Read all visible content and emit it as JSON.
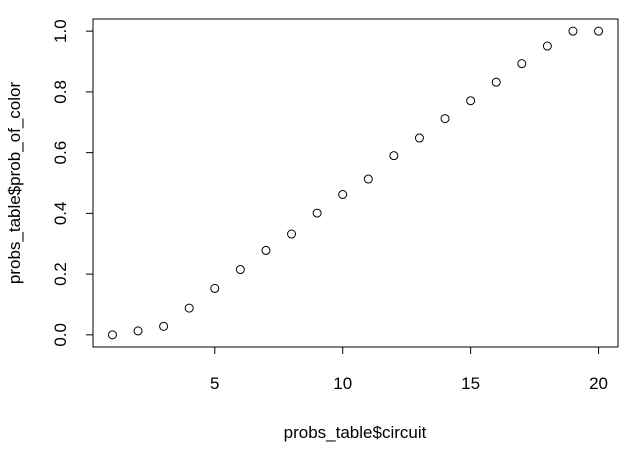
{
  "chart_data": {
    "type": "scatter",
    "title": "",
    "xlabel": "probs_table$circuit",
    "ylabel": "probs_table$prob_of_color",
    "xlim": [
      0.24,
      20.76
    ],
    "ylim": [
      -0.04,
      1.04
    ],
    "grid": false,
    "legend": "none",
    "marker": "open-circle",
    "x_ticks": [
      5,
      10,
      15,
      20
    ],
    "x_tick_labels": [
      "5",
      "10",
      "15",
      "20"
    ],
    "y_ticks": [
      0.0,
      0.2,
      0.4,
      0.6,
      0.8,
      1.0
    ],
    "y_tick_labels": [
      "0.0",
      "0.2",
      "0.4",
      "0.6",
      "0.8",
      "1.0"
    ],
    "points": [
      {
        "x": 1,
        "y": 0.0
      },
      {
        "x": 2,
        "y": 0.013
      },
      {
        "x": 3,
        "y": 0.028
      },
      {
        "x": 4,
        "y": 0.088
      },
      {
        "x": 5,
        "y": 0.153
      },
      {
        "x": 6,
        "y": 0.215
      },
      {
        "x": 7,
        "y": 0.278
      },
      {
        "x": 8,
        "y": 0.332
      },
      {
        "x": 9,
        "y": 0.401
      },
      {
        "x": 10,
        "y": 0.462
      },
      {
        "x": 11,
        "y": 0.513
      },
      {
        "x": 12,
        "y": 0.59
      },
      {
        "x": 13,
        "y": 0.648
      },
      {
        "x": 14,
        "y": 0.712
      },
      {
        "x": 15,
        "y": 0.771
      },
      {
        "x": 16,
        "y": 0.832
      },
      {
        "x": 17,
        "y": 0.893
      },
      {
        "x": 18,
        "y": 0.951
      },
      {
        "x": 19,
        "y": 1.0
      },
      {
        "x": 20,
        "y": 1.0
      }
    ]
  },
  "colors": {
    "background": "#ffffff",
    "ink": "#000000"
  }
}
